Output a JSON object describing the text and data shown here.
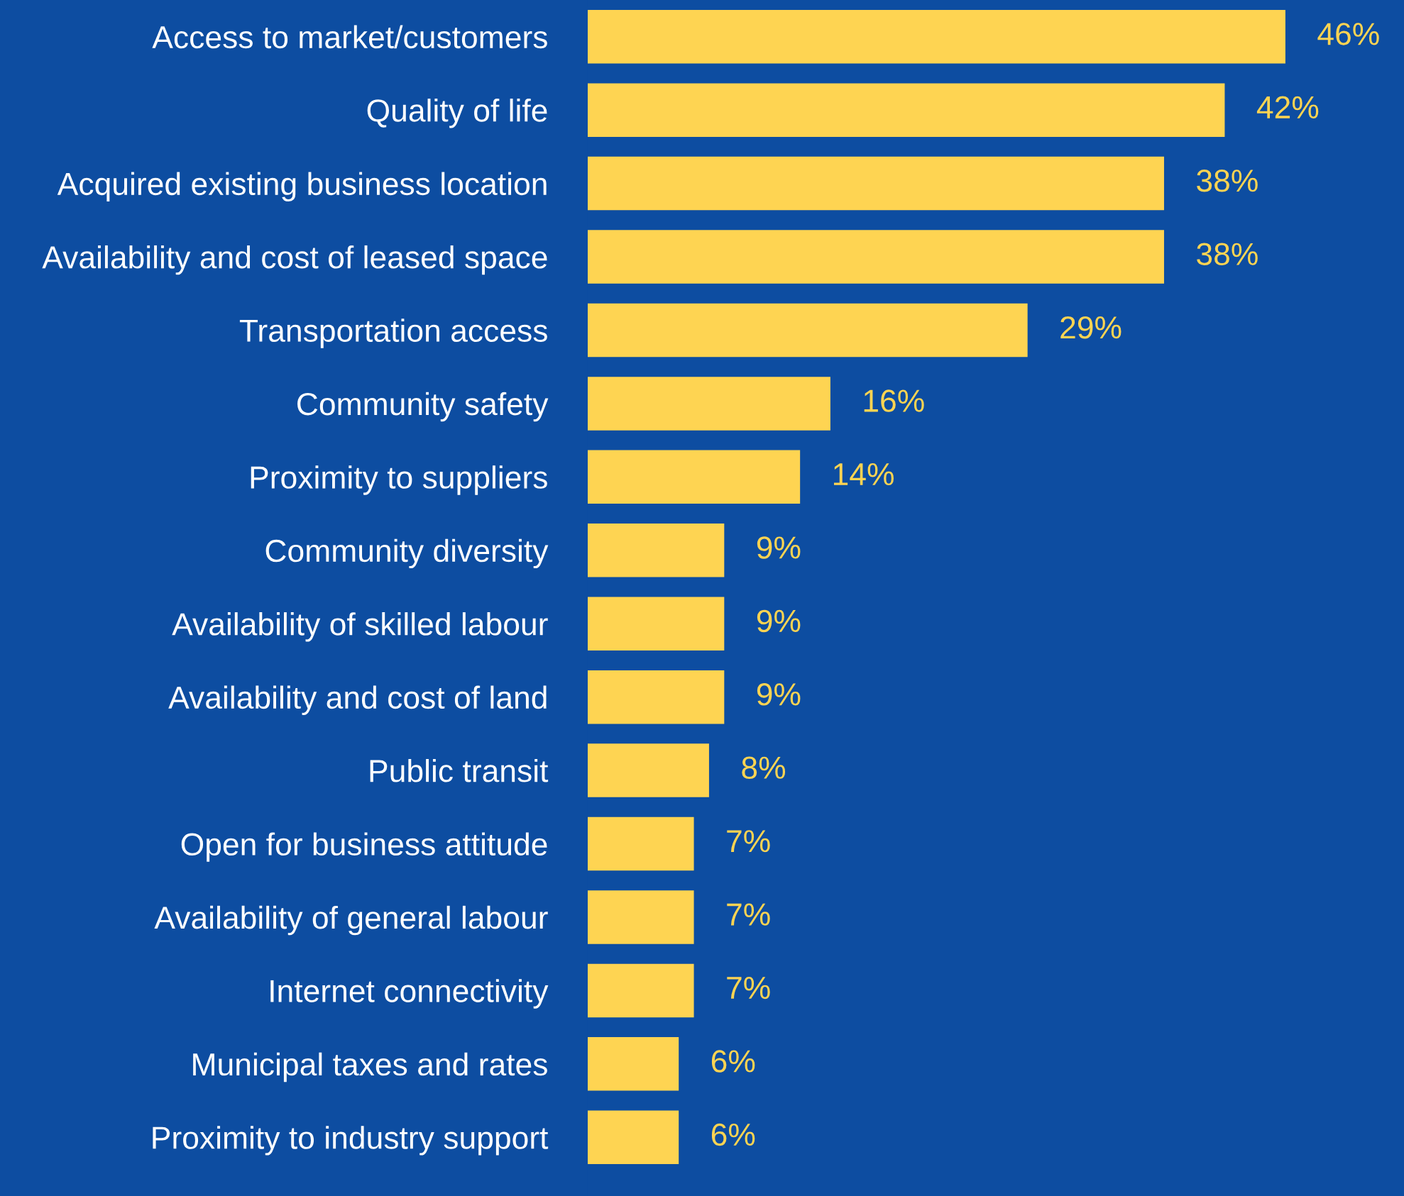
{
  "chart_data": {
    "type": "bar",
    "orientation": "horizontal",
    "color": "#fed452",
    "categories": [
      "Access to market/customers",
      "Quality of life",
      "Acquired existing business location",
      "Availability and cost of leased space",
      "Transportation access",
      "Community safety",
      "Proximity to suppliers",
      "Community diversity",
      "Availability of skilled labour",
      "Availability and cost of land",
      "Public transit",
      "Open for business attitude",
      "Availability of general labour",
      "Internet connectivity",
      "Municipal taxes and rates",
      "Proximity to industry support"
    ],
    "values": [
      46,
      42,
      38,
      38,
      29,
      16,
      14,
      9,
      9,
      9,
      8,
      7,
      7,
      7,
      6,
      6
    ],
    "value_labels": [
      "46%",
      "42%",
      "38%",
      "38%",
      "29%",
      "16%",
      "14%",
      "9%",
      "9%",
      "9%",
      "8%",
      "7%",
      "7%",
      "7%",
      "6%",
      "6%"
    ],
    "grid": false,
    "legend": false
  }
}
